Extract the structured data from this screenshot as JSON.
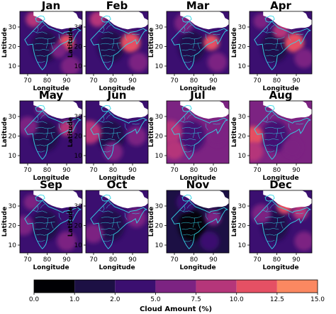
{
  "chart_data": {
    "type": "heatmap",
    "variable_label": "Cloud Amount (%)",
    "panel_xlabel": "Longitude",
    "panel_ylabel": "Latitude",
    "x_ticks": [
      70,
      80,
      90
    ],
    "y_ticks": [
      10,
      20,
      30
    ],
    "xlim": [
      66,
      98
    ],
    "ylim": [
      6,
      38
    ],
    "colorbar": {
      "levels": [
        0.0,
        1.0,
        2.0,
        5.0,
        7.5,
        10.0,
        12.5,
        15.0
      ],
      "tick_labels": [
        "0.0",
        "1.0",
        "2.0",
        "5.0",
        "7.5",
        "10.0",
        "12.5",
        "15.0"
      ],
      "colors": [
        "#000004",
        "#1c1044",
        "#3b0f70",
        "#7c2382",
        "#b5367a",
        "#e55064",
        "#fb8861",
        "#fed395"
      ],
      "position": "bottom"
    },
    "panels": [
      {
        "month": "Jan",
        "background_level": 2,
        "hotspots": [
          {
            "lon": 90,
            "lat": 22,
            "level": 5,
            "r": 4
          },
          {
            "lon": 73,
            "lat": 34,
            "level": 4,
            "r": 4
          },
          {
            "lon": 92,
            "lat": 10,
            "level": 3,
            "r": 5
          },
          {
            "lon": 86,
            "lat": 18,
            "level": 3,
            "r": 4
          }
        ]
      },
      {
        "month": "Feb",
        "background_level": 2,
        "hotspots": [
          {
            "lon": 89,
            "lat": 22,
            "level": 5,
            "r": 5
          },
          {
            "lon": 72,
            "lat": 34,
            "level": 4,
            "r": 4
          },
          {
            "lon": 93,
            "lat": 12,
            "level": 3,
            "r": 5
          }
        ]
      },
      {
        "month": "Mar",
        "background_level": 2,
        "hotspots": [
          {
            "lon": 89,
            "lat": 22,
            "level": 5,
            "r": 4
          },
          {
            "lon": 75,
            "lat": 32,
            "level": 3,
            "r": 5
          },
          {
            "lon": 92,
            "lat": 12,
            "level": 3,
            "r": 5
          }
        ]
      },
      {
        "month": "Apr",
        "background_level": 2,
        "hotspots": [
          {
            "lon": 89,
            "lat": 22,
            "level": 5,
            "r": 5
          },
          {
            "lon": 82,
            "lat": 28,
            "level": 4,
            "r": 4
          },
          {
            "lon": 72,
            "lat": 33,
            "level": 3,
            "r": 4
          },
          {
            "lon": 94,
            "lat": 14,
            "level": 3,
            "r": 5
          }
        ]
      },
      {
        "month": "May",
        "background_level": 2,
        "hotspots": [
          {
            "lon": 90,
            "lat": 24,
            "level": 4,
            "r": 4
          },
          {
            "lon": 70,
            "lat": 25,
            "level": 3,
            "r": 5
          },
          {
            "lon": 78,
            "lat": 34,
            "level": 3,
            "r": 4
          }
        ]
      },
      {
        "month": "Jun",
        "background_level": 2,
        "hotspots": [
          {
            "lon": 68,
            "lat": 22,
            "level": 4,
            "r": 6
          },
          {
            "lon": 92,
            "lat": 20,
            "level": 3,
            "r": 5
          },
          {
            "lon": 80,
            "lat": 12,
            "level": 3,
            "r": 5
          }
        ]
      },
      {
        "month": "Jul",
        "background_level": 3,
        "hotspots": [
          {
            "lon": 68,
            "lat": 22,
            "level": 4,
            "r": 6
          },
          {
            "lon": 70,
            "lat": 13,
            "level": 4,
            "r": 5
          },
          {
            "lon": 92,
            "lat": 20,
            "level": 3,
            "r": 5
          }
        ]
      },
      {
        "month": "Aug",
        "background_level": 3,
        "hotspots": [
          {
            "lon": 68,
            "lat": 20,
            "level": 5,
            "r": 5
          },
          {
            "lon": 68,
            "lat": 12,
            "level": 4,
            "r": 5
          },
          {
            "lon": 88,
            "lat": 14,
            "level": 3,
            "r": 5
          }
        ]
      },
      {
        "month": "Sep",
        "background_level": 2,
        "hotspots": [
          {
            "lon": 72,
            "lat": 32,
            "level": 3,
            "r": 4
          },
          {
            "lon": 68,
            "lat": 20,
            "level": 3,
            "r": 5
          },
          {
            "lon": 90,
            "lat": 12,
            "level": 3,
            "r": 5
          }
        ]
      },
      {
        "month": "Oct",
        "background_level": 2,
        "hotspots": [
          {
            "lon": 92,
            "lat": 24,
            "level": 3,
            "r": 5
          },
          {
            "lon": 70,
            "lat": 16,
            "level": 3,
            "r": 5
          }
        ]
      },
      {
        "month": "Nov",
        "background_level": 1,
        "hotspots": [
          {
            "lon": 90,
            "lat": 24,
            "level": 3,
            "r": 4
          },
          {
            "lon": 76,
            "lat": 32,
            "level": 2,
            "r": 5
          },
          {
            "lon": 88,
            "lat": 12,
            "level": 2,
            "r": 5
          }
        ]
      },
      {
        "month": "Dec",
        "background_level": 2,
        "hotspots": [
          {
            "lon": 84,
            "lat": 30,
            "level": 5,
            "r": 4
          },
          {
            "lon": 92,
            "lat": 27,
            "level": 4,
            "r": 4
          },
          {
            "lon": 72,
            "lat": 26,
            "level": 3,
            "r": 5
          },
          {
            "lon": 94,
            "lat": 12,
            "level": 3,
            "r": 5
          }
        ]
      }
    ]
  }
}
